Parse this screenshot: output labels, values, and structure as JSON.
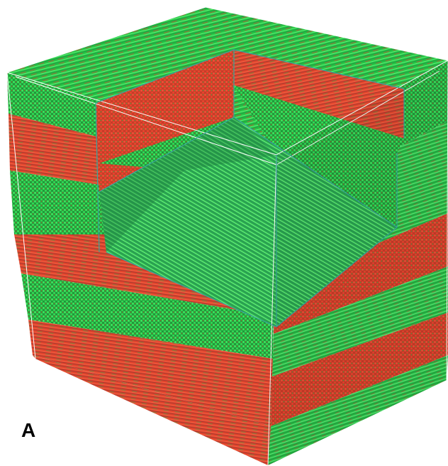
{
  "panel_label": "A",
  "colors": {
    "background": "#ffffff",
    "fiber_green": "#2ed14a",
    "fiber_red": "#e8472e",
    "edge_white": "#ffffff",
    "cut_edge_teal": "#3aa4a0"
  }
}
